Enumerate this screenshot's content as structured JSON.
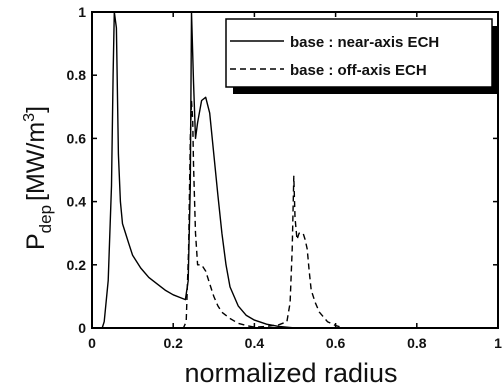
{
  "chart_data": {
    "type": "line",
    "xlabel": "normalized radius",
    "ylabel_main": "P",
    "ylabel_sub": "dep",
    "ylabel_unit_prefix": "[MW/m",
    "ylabel_unit_exp": "3",
    "ylabel_unit_suffix": "]",
    "xlim": [
      0,
      1
    ],
    "ylim": [
      0,
      1
    ],
    "x_ticks": [
      "0",
      "0.2",
      "0.4",
      "0.6",
      "0.8",
      "1"
    ],
    "y_ticks": [
      "0",
      "0.2",
      "0.4",
      "0.6",
      "0.8",
      "1"
    ],
    "grid": false,
    "legend_position": "top-right",
    "series": [
      {
        "name": "base : near-axis ECH",
        "style": "solid",
        "points": [
          [
            0.0,
            0.0
          ],
          [
            0.025,
            0.0
          ],
          [
            0.03,
            0.02
          ],
          [
            0.04,
            0.15
          ],
          [
            0.048,
            0.45
          ],
          [
            0.052,
            0.8
          ],
          [
            0.055,
            1.0
          ],
          [
            0.06,
            0.95
          ],
          [
            0.065,
            0.55
          ],
          [
            0.07,
            0.4
          ],
          [
            0.075,
            0.33
          ],
          [
            0.08,
            0.31
          ],
          [
            0.09,
            0.27
          ],
          [
            0.1,
            0.23
          ],
          [
            0.12,
            0.19
          ],
          [
            0.14,
            0.16
          ],
          [
            0.16,
            0.14
          ],
          [
            0.18,
            0.12
          ],
          [
            0.2,
            0.105
          ],
          [
            0.22,
            0.095
          ],
          [
            0.23,
            0.09
          ],
          [
            0.237,
            0.15
          ],
          [
            0.242,
            0.45
          ],
          [
            0.245,
            1.0
          ],
          [
            0.25,
            0.78
          ],
          [
            0.255,
            0.6
          ],
          [
            0.26,
            0.65
          ],
          [
            0.27,
            0.72
          ],
          [
            0.28,
            0.73
          ],
          [
            0.29,
            0.68
          ],
          [
            0.3,
            0.55
          ],
          [
            0.31,
            0.42
          ],
          [
            0.32,
            0.3
          ],
          [
            0.33,
            0.2
          ],
          [
            0.34,
            0.13
          ],
          [
            0.36,
            0.07
          ],
          [
            0.38,
            0.04
          ],
          [
            0.4,
            0.025
          ],
          [
            0.43,
            0.012
          ],
          [
            0.46,
            0.005
          ],
          [
            0.5,
            0.0
          ],
          [
            1.0,
            0.0
          ]
        ]
      },
      {
        "name": "base : off-axis ECH",
        "style": "dashed",
        "points": [
          [
            0.0,
            0.0
          ],
          [
            0.225,
            0.0
          ],
          [
            0.232,
            0.02
          ],
          [
            0.238,
            0.25
          ],
          [
            0.242,
            0.6
          ],
          [
            0.245,
            0.72
          ],
          [
            0.248,
            0.66
          ],
          [
            0.25,
            0.52
          ],
          [
            0.255,
            0.3
          ],
          [
            0.26,
            0.2
          ],
          [
            0.27,
            0.2
          ],
          [
            0.28,
            0.18
          ],
          [
            0.29,
            0.14
          ],
          [
            0.3,
            0.1
          ],
          [
            0.31,
            0.07
          ],
          [
            0.32,
            0.05
          ],
          [
            0.34,
            0.03
          ],
          [
            0.36,
            0.015
          ],
          [
            0.38,
            0.008
          ],
          [
            0.4,
            0.003
          ],
          [
            0.43,
            0.005
          ],
          [
            0.46,
            0.01
          ],
          [
            0.48,
            0.02
          ],
          [
            0.488,
            0.08
          ],
          [
            0.493,
            0.25
          ],
          [
            0.497,
            0.48
          ],
          [
            0.5,
            0.35
          ],
          [
            0.505,
            0.28
          ],
          [
            0.51,
            0.3
          ],
          [
            0.515,
            0.3
          ],
          [
            0.52,
            0.3
          ],
          [
            0.525,
            0.28
          ],
          [
            0.53,
            0.25
          ],
          [
            0.535,
            0.18
          ],
          [
            0.54,
            0.12
          ],
          [
            0.55,
            0.08
          ],
          [
            0.56,
            0.05
          ],
          [
            0.58,
            0.02
          ],
          [
            0.6,
            0.008
          ],
          [
            0.62,
            0.0
          ],
          [
            1.0,
            0.0
          ]
        ]
      }
    ]
  }
}
